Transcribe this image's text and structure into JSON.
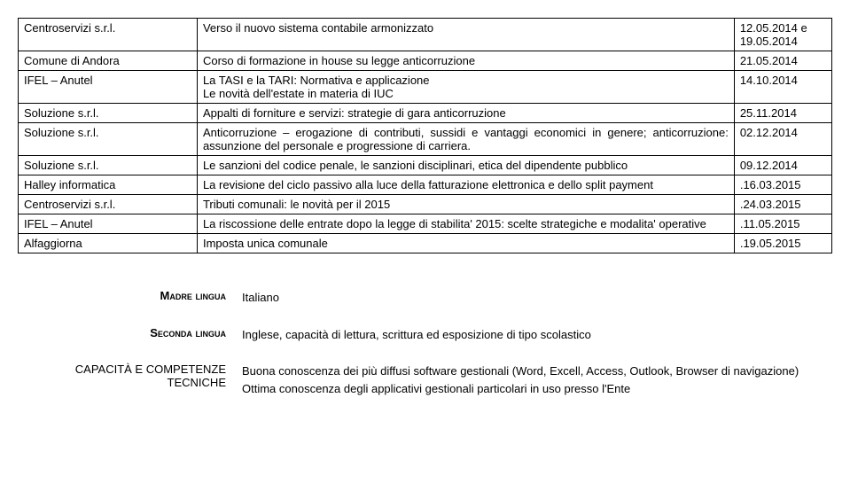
{
  "table": {
    "rows": [
      {
        "c1": "Centroservizi s.r.l.",
        "c2": "Verso il nuovo sistema contabile armonizzato",
        "c3": "12.05.2014 e 19.05.2014",
        "justify": false
      },
      {
        "c1": "Comune di Andora",
        "c2": "Corso di formazione in house su legge anticorruzione",
        "c3": "21.05.2014",
        "justify": false
      },
      {
        "c1": "IFEL – Anutel",
        "c2": "La TASI e la TARI: Normativa e applicazione\nLe novità dell'estate in materia di IUC",
        "c3": "14.10.2014",
        "justify": false
      },
      {
        "c1": "Soluzione s.r.l.",
        "c2": "Appalti di forniture e servizi: strategie di gara anticorruzione",
        "c3": "25.11.2014",
        "justify": true
      },
      {
        "c1": "Soluzione s.r.l.",
        "c2": "Anticorruzione – erogazione di contributi, sussidi e vantaggi economici in genere; anticorruzione: assunzione del personale e progressione di carriera.",
        "c3": "02.12.2014",
        "justify": true
      },
      {
        "c1": "Soluzione s.r.l.",
        "c2": "Le sanzioni del codice penale, le sanzioni disciplinari, etica del dipendente pubblico",
        "c3": "09.12.2014",
        "justify": true
      },
      {
        "c1": "Halley informatica",
        "c2": "La revisione del ciclo passivo alla luce della fatturazione elettronica e dello split payment",
        "c3": ".16.03.2015",
        "justify": true
      },
      {
        "c1": "Centroservizi s.r.l.",
        "c2": "Tributi comunali: le novità per il 2015",
        "c3": ".24.03.2015",
        "justify": false
      },
      {
        "c1": "IFEL – Anutel",
        "c2": "La riscossione delle entrate dopo la legge di stabilita' 2015: scelte strategiche e modalita' operative",
        "c3": ".11.05.2015",
        "justify": true
      },
      {
        "c1": "Alfaggiorna",
        "c2": "Imposta unica comunale",
        "c3": ".19.05.2015",
        "justify": false
      }
    ]
  },
  "lower": {
    "rows": [
      {
        "label": "Madre lingua",
        "value": "Italiano",
        "bold": true
      },
      {
        "label": "Seconda lingua",
        "value": "Inglese, capacità di lettura, scrittura ed esposizione di tipo scolastico",
        "bold": true
      },
      {
        "label": "CAPACITÀ E COMPETENZE TECNICHE",
        "value": "Buona conoscenza dei più diffusi software gestionali (Word, Excell, Access, Outlook, Browser di navigazione)\nOttima conoscenza degli applicativi gestionali particolari in uso presso l'Ente",
        "bold": false
      }
    ]
  }
}
